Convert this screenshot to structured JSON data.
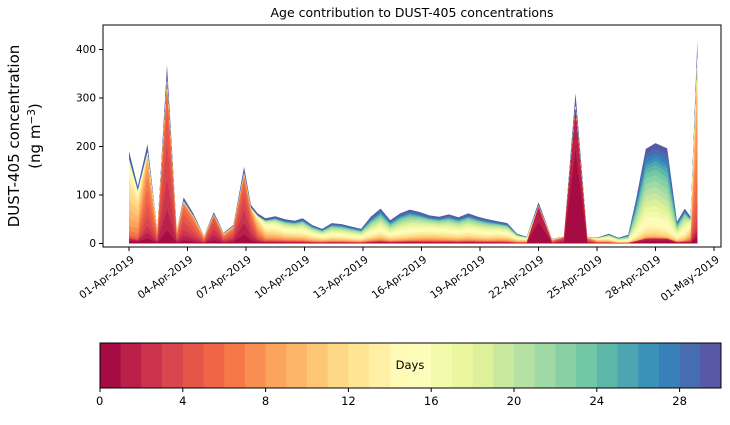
{
  "chart_data": {
    "type": "area",
    "stacked": true,
    "title": "Age contribution to DUST-405 concentrations",
    "xlabel": "",
    "ylabel_line1": "DUST-405 concentration",
    "ylabel_line2": {
      "prefix": "(ng m",
      "superscript": "−3",
      "suffix": ")"
    },
    "ylim": [
      -7,
      450
    ],
    "y_ticks": [
      0,
      100,
      200,
      300,
      400
    ],
    "x_axis": {
      "unit": "days since 01-Apr-2019",
      "xlim_days": [
        -1.35,
        30.35
      ],
      "tick_days": [
        0,
        3,
        6,
        9,
        12,
        15,
        18,
        21,
        24,
        27,
        30
      ],
      "tick_labels": [
        "01-Apr-2019",
        "04-Apr-2019",
        "07-Apr-2019",
        "10-Apr-2019",
        "13-Apr-2019",
        "16-Apr-2019",
        "19-Apr-2019",
        "22-Apr-2019",
        "25-Apr-2019",
        "28-Apr-2019",
        "01-May-2019"
      ]
    },
    "age_layers": {
      "count": 30,
      "bin_days": 1,
      "range": [
        0,
        30
      ],
      "colormap": "Spectral",
      "colormap_anchors": [
        "#9e0142",
        "#d53e4f",
        "#f46d43",
        "#fdae61",
        "#fee08b",
        "#ffffbf",
        "#e6f598",
        "#abdda4",
        "#66c2a5",
        "#3288bd",
        "#5e4fa2"
      ]
    },
    "colorbar": {
      "label": "Days",
      "ticks": [
        0,
        4,
        8,
        12,
        16,
        20,
        24,
        28
      ],
      "range": [
        0,
        30
      ],
      "segments": 30
    },
    "grid": false,
    "background": "#ffffff",
    "spine_color": "#000000",
    "rim_fractions": {
      "0": 0.03,
      "1": 0.018,
      "14": 0.015,
      "27": 0.018,
      "28": 0.028,
      "29": 0.042
    },
    "points_columns": [
      "day",
      "total_ng_m3",
      "age_mode_days",
      "age_sigma_days"
    ],
    "points": [
      [
        0.0,
        190,
        11,
        3.2
      ],
      [
        0.45,
        118,
        10,
        3.0
      ],
      [
        0.95,
        205,
        5.5,
        2.6
      ],
      [
        1.45,
        28,
        6,
        3.0
      ],
      [
        1.95,
        368,
        3.5,
        1.7
      ],
      [
        2.45,
        26,
        5,
        3.0
      ],
      [
        2.8,
        95,
        4,
        2.0
      ],
      [
        3.3,
        62,
        4.5,
        2.2
      ],
      [
        3.85,
        16,
        6,
        3.0
      ],
      [
        4.35,
        65,
        3,
        1.8
      ],
      [
        4.85,
        22,
        5,
        3.0
      ],
      [
        5.35,
        38,
        4,
        2.5
      ],
      [
        5.9,
        158,
        3,
        2.2
      ],
      [
        6.25,
        80,
        4,
        2.6
      ],
      [
        6.6,
        62,
        8,
        4.0
      ],
      [
        7.0,
        52,
        12,
        5.0
      ],
      [
        7.5,
        56,
        13,
        5.5
      ],
      [
        8.0,
        50,
        14,
        6.0
      ],
      [
        8.5,
        47,
        14,
        6.0
      ],
      [
        8.9,
        52,
        15,
        6.0
      ],
      [
        9.4,
        38,
        15,
        6.0
      ],
      [
        9.9,
        30,
        15,
        6.0
      ],
      [
        10.4,
        42,
        16,
        6.0
      ],
      [
        10.9,
        40,
        16,
        6.0
      ],
      [
        11.4,
        35,
        16,
        6.0
      ],
      [
        11.9,
        30,
        16,
        6.0
      ],
      [
        12.4,
        55,
        17,
        6.5
      ],
      [
        12.9,
        72,
        17,
        6.5
      ],
      [
        13.4,
        48,
        17,
        6.5
      ],
      [
        13.9,
        62,
        17,
        6.0
      ],
      [
        14.4,
        70,
        17,
        6.0
      ],
      [
        14.9,
        65,
        16,
        6.0
      ],
      [
        15.4,
        58,
        15,
        6.0
      ],
      [
        15.9,
        55,
        15,
        6.0
      ],
      [
        16.4,
        60,
        16,
        6.0
      ],
      [
        16.9,
        54,
        16,
        6.0
      ],
      [
        17.4,
        62,
        16,
        6.0
      ],
      [
        17.9,
        55,
        16,
        6.0
      ],
      [
        18.4,
        50,
        16,
        6.0
      ],
      [
        18.9,
        46,
        15,
        6.0
      ],
      [
        19.4,
        42,
        15,
        6.0
      ],
      [
        19.9,
        20,
        14,
        6.0
      ],
      [
        20.4,
        14,
        12,
        6.0
      ],
      [
        21.0,
        85,
        0.6,
        0.9
      ],
      [
        21.7,
        10,
        6,
        4.0
      ],
      [
        22.3,
        14,
        2,
        2.0
      ],
      [
        22.9,
        310,
        0.5,
        0.75
      ],
      [
        23.5,
        14,
        4,
        3.0
      ],
      [
        24.0,
        12,
        10,
        5.0
      ],
      [
        24.6,
        20,
        14,
        6.0
      ],
      [
        25.1,
        12,
        16,
        6.0
      ],
      [
        25.6,
        18,
        18,
        6.0
      ],
      [
        26.0,
        90,
        20,
        5.5
      ],
      [
        26.5,
        195,
        20,
        5.5
      ],
      [
        27.0,
        207,
        20,
        5.5
      ],
      [
        27.6,
        196,
        21,
        5.5
      ],
      [
        28.1,
        45,
        18,
        6.0
      ],
      [
        28.5,
        72,
        17,
        5.0
      ],
      [
        28.8,
        55,
        12,
        5.0
      ],
      [
        29.15,
        420,
        7,
        2.4
      ]
    ]
  }
}
